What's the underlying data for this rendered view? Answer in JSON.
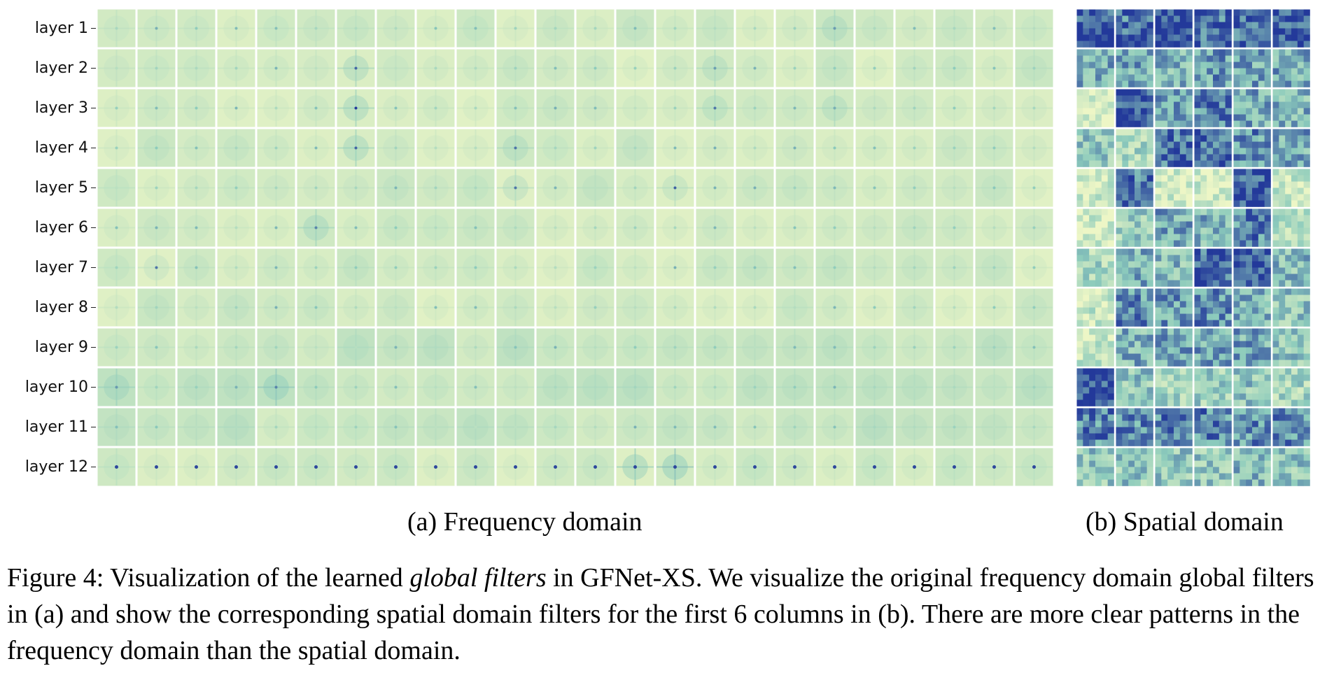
{
  "figure": {
    "layer_labels": [
      "layer 1",
      "layer 2",
      "layer 3",
      "layer 4",
      "layer 5",
      "layer 6",
      "layer 7",
      "layer 8",
      "layer 9",
      "layer 10",
      "layer 11",
      "layer 12"
    ],
    "subcaption_a": "(a) Frequency domain",
    "subcaption_b": "(b) Spatial domain",
    "caption": {
      "prefix": "Figure 4: Visualization of the learned ",
      "emphasis": "global filters",
      "suffix": " in GFNet-XS. We visualize the original frequency domain global filters in (a) and show the corresponding spatial domain filters for the first 6 columns in (b). There are more clear patterns in the frequency domain than the spatial domain."
    },
    "grid": {
      "rows": 12,
      "freq_columns": 24,
      "spatial_columns": 6
    },
    "colors": {
      "light": "#edf6c6",
      "mid": "#8ccbbc",
      "dark": "#23399a",
      "separator": "#ffffff"
    }
  }
}
